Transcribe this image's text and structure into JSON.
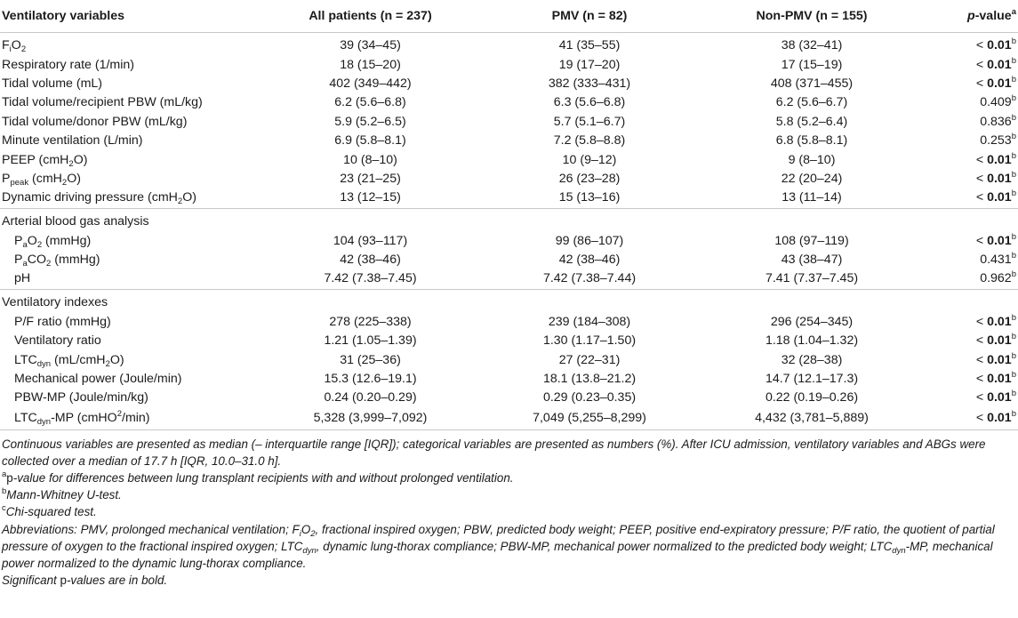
{
  "header": {
    "col1": "Ventilatory variables",
    "col2": "All patients (n = 237)",
    "col3": "PMV (n = 82)",
    "col4": "Non-PMV (n = 155)",
    "col5_italic": "p",
    "col5_rest": "-value",
    "col5_sup": "a"
  },
  "rows_main": [
    {
      "label_pre": "F",
      "label_sub": "i",
      "label_post": "O",
      "label_sub2": "2",
      "label_end": "",
      "all": "39 (34–45)",
      "pmv": "41 (35–55)",
      "non": "38 (32–41)",
      "p_prefix": "< ",
      "p_bold": "0.01",
      "p_plain": "",
      "p_sup": "b"
    },
    {
      "label_pre": "Respiratory rate (1/min)",
      "all": "18 (15–20)",
      "pmv": "19 (17–20)",
      "non": "17 (15–19)",
      "p_prefix": "< ",
      "p_bold": "0.01",
      "p_plain": "",
      "p_sup": "b"
    },
    {
      "label_pre": "Tidal volume (mL)",
      "all": "402 (349–442)",
      "pmv": "382 (333–431)",
      "non": "408 (371–455)",
      "p_prefix": "< ",
      "p_bold": "0.01",
      "p_plain": "",
      "p_sup": "b"
    },
    {
      "label_pre": "Tidal volume/recipient PBW (mL/kg)",
      "all": "6.2 (5.6–6.8)",
      "pmv": "6.3 (5.6–6.8)",
      "non": "6.2 (5.6–6.7)",
      "p_prefix": "",
      "p_bold": "",
      "p_plain": "0.409",
      "p_sup": "b"
    },
    {
      "label_pre": "Tidal volume/donor PBW (mL/kg)",
      "all": "5.9 (5.2–6.5)",
      "pmv": "5.7 (5.1–6.7)",
      "non": "5.8 (5.2–6.4)",
      "p_prefix": "",
      "p_bold": "",
      "p_plain": "0.836",
      "p_sup": "b"
    },
    {
      "label_pre": "Minute ventilation (L/min)",
      "all": "6.9 (5.8–8.1)",
      "pmv": "7.2 (5.8–8.8)",
      "non": "6.8 (5.8–8.1)",
      "p_prefix": "",
      "p_bold": "",
      "p_plain": "0.253",
      "p_sup": "b"
    },
    {
      "label_pre": "PEEP (cmH",
      "label_sub": "",
      "label_post": "",
      "label_sub2": "2",
      "label_end": "O)",
      "all": "10 (8–10)",
      "pmv": "10 (9–12)",
      "non": "9 (8–10)",
      "p_prefix": "< ",
      "p_bold": "0.01",
      "p_plain": "",
      "p_sup": "b"
    },
    {
      "label_pre": "P",
      "label_sub": "peak",
      "label_post": " (cmH",
      "label_sub2": "2",
      "label_end": "O)",
      "all": "23 (21–25)",
      "pmv": "26 (23–28)",
      "non": "22 (20–24)",
      "p_prefix": "< ",
      "p_bold": "0.01",
      "p_plain": "",
      "p_sup": "b"
    },
    {
      "label_pre": "Dynamic driving pressure (cmH",
      "label_sub": "",
      "label_post": "",
      "label_sub2": "2",
      "label_end": "O)",
      "all": "13 (12–15)",
      "pmv": "15 (13–16)",
      "non": "13 (11–14)",
      "p_prefix": "< ",
      "p_bold": "0.01",
      "p_plain": "",
      "p_sup": "b"
    }
  ],
  "section_abg": "Arterial blood gas analysis",
  "rows_abg": [
    {
      "label_pre": "P",
      "label_sub": "a",
      "label_post": "O",
      "label_sub2": "2",
      "label_end": " (mmHg)",
      "all": "104 (93–117)",
      "pmv": "99 (86–107)",
      "non": "108 (97–119)",
      "p_prefix": "< ",
      "p_bold": "0.01",
      "p_plain": "",
      "p_sup": "b"
    },
    {
      "label_pre": "P",
      "label_sub": "a",
      "label_post": "CO",
      "label_sub2": "2",
      "label_end": " (mmHg)",
      "all": "42 (38–46)",
      "pmv": "42 (38–46)",
      "non": "43 (38–47)",
      "p_prefix": "",
      "p_bold": "",
      "p_plain": "0.431",
      "p_sup": "b"
    },
    {
      "label_pre": "pH",
      "all": "7.42 (7.38–7.45)",
      "pmv": "7.42 (7.38–7.44)",
      "non": "7.41 (7.37–7.45)",
      "p_prefix": "",
      "p_bold": "",
      "p_plain": "0.962",
      "p_sup": "b"
    }
  ],
  "section_idx": "Ventilatory indexes",
  "rows_idx": [
    {
      "label_pre": "P/F ratio (mmHg)",
      "all": "278 (225–338)",
      "pmv": "239 (184–308)",
      "non": "296 (254–345)",
      "p_prefix": "< ",
      "p_bold": "0.01",
      "p_plain": "",
      "p_sup": "b"
    },
    {
      "label_pre": "Ventilatory ratio",
      "all": "1.21 (1.05–1.39)",
      "pmv": "1.30 (1.17–1.50)",
      "non": "1.18 (1.04–1.32)",
      "p_prefix": "< ",
      "p_bold": "0.01",
      "p_plain": "",
      "p_sup": "b"
    },
    {
      "label_pre": "LTC",
      "label_sub": "dyn",
      "label_post": " (mL/cmH",
      "label_sub2": "2",
      "label_end": "O)",
      "all": "31 (25–36)",
      "pmv": "27 (22–31)",
      "non": "32 (28–38)",
      "p_prefix": "< ",
      "p_bold": "0.01",
      "p_plain": "",
      "p_sup": "b"
    },
    {
      "label_pre": "Mechanical power (Joule/min)",
      "all": "15.3 (12.6–19.1)",
      "pmv": "18.1 (13.8–21.2)",
      "non": "14.7 (12.1–17.3)",
      "p_prefix": "< ",
      "p_bold": "0.01",
      "p_plain": "",
      "p_sup": "b"
    },
    {
      "label_pre": "PBW-MP (Joule/min/kg)",
      "all": "0.24 (0.20–0.29)",
      "pmv": "0.29 (0.23–0.35)",
      "non": "0.22 (0.19–0.26)",
      "p_prefix": "< ",
      "p_bold": "0.01",
      "p_plain": "",
      "p_sup": "b"
    },
    {
      "label_pre": "LTC",
      "label_sub": "dyn",
      "label_post": "-MP (cmH",
      "label_sub2": "",
      "label_end": "O",
      "label_sup": "2",
      "label_tail": "/min)",
      "all": "5,328 (3,999–7,092)",
      "pmv": "7,049 (5,255–8,299)",
      "non": "4,432 (3,781–5,889)",
      "p_prefix": "< ",
      "p_bold": "0.01",
      "p_plain": "",
      "p_sup": "b"
    }
  ],
  "footnotes": {
    "f1": "Continuous variables are presented as median (– interquartile range [IQR]); categorical variables are presented as numbers (%). After ICU admission, ventilatory variables and ABGs were collected over a median of 17.7 h [IQR, 10.0–31.0 h].",
    "f2_sup": "a",
    "f2_plain": "p",
    "f2_rest": "-value for differences between lung transplant recipients with and without prolonged ventilation.",
    "f3_sup": "b",
    "f3": "Mann-Whitney U-test.",
    "f4_sup": "c",
    "f4": "Chi-squared test.",
    "f5_a": "Abbreviations: PMV, prolonged mechanical ventilation; F",
    "f5_sub1": "i",
    "f5_b": "O",
    "f5_sub2": "2",
    "f5_c": ", fractional inspired oxygen; PBW, predicted body weight; PEEP, positive end-expiratory pressure; P/F ratio, the quotient of partial pressure of oxygen to the fractional inspired oxygen; LTC",
    "f5_sub3": "dyn",
    "f5_d": ", dynamic lung-thorax compliance; PBW-MP, mechanical power normalized to the predicted body weight; LTC",
    "f5_sub4": "dyn",
    "f5_e": "-MP, mechanical power normalized to the dynamic lung-thorax compliance.",
    "f6_a": "Significant ",
    "f6_plain": "p",
    "f6_b": "-values are in bold."
  }
}
